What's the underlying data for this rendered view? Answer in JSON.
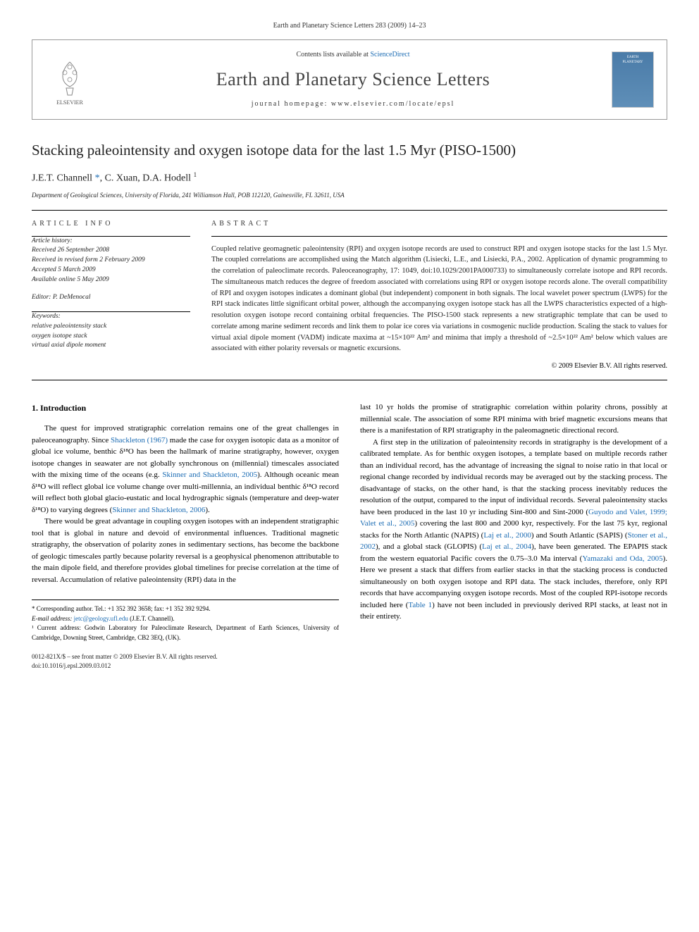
{
  "citation_top": "Earth and Planetary Science Letters 283 (2009) 14–23",
  "header": {
    "publisher_label": "ELSEVIER",
    "contents_prefix": "Contents lists available at ",
    "contents_link": "ScienceDirect",
    "journal_name": "Earth and Planetary Science Letters",
    "homepage_label": "journal homepage: www.elsevier.com/locate/epsl",
    "thumb_line1": "EARTH",
    "thumb_line2": "PLANETARY"
  },
  "article": {
    "title": "Stacking paleointensity and oxygen isotope data for the last 1.5 Myr (PISO-1500)",
    "authors_html": "J.E.T. Channell *, C. Xuan, D.A. Hodell ¹",
    "affiliation": "Department of Geological Sciences, University of Florida, 241 Williamson Hall, POB 112120, Gainesville, FL 32611, USA"
  },
  "info": {
    "label": "ARTICLE INFO",
    "history_label": "Article history:",
    "history": [
      "Received 26 September 2008",
      "Received in revised form 2 February 2009",
      "Accepted 5 March 2009",
      "Available online 5 May 2009"
    ],
    "editor": "Editor: P. DeMenocal",
    "keywords_label": "Keywords:",
    "keywords": [
      "relative paleointensity stack",
      "oxygen isotope stack",
      "virtual axial dipole moment"
    ]
  },
  "abstract": {
    "label": "ABSTRACT",
    "text": "Coupled relative geomagnetic paleointensity (RPI) and oxygen isotope records are used to construct RPI and oxygen isotope stacks for the last 1.5 Myr. The coupled correlations are accomplished using the Match algorithm (Lisiecki, L.E., and Lisiecki, P.A., 2002. Application of dynamic programming to the correlation of paleoclimate records. Paleoceanography, 17: 1049, doi:10.1029/2001PA000733) to simultaneously correlate isotope and RPI records. The simultaneous match reduces the degree of freedom associated with correlations using RPI or oxygen isotope records alone. The overall compatibility of RPI and oxygen isotopes indicates a dominant global (but independent) component in both signals. The local wavelet power spectrum (LWPS) for the RPI stack indicates little significant orbital power, although the accompanying oxygen isotope stack has all the LWPS characteristics expected of a high-resolution oxygen isotope record containing orbital frequencies. The PISO-1500 stack represents a new stratigraphic template that can be used to correlate among marine sediment records and link them to polar ice cores via variations in cosmogenic nuclide production. Scaling the stack to values for virtual axial dipole moment (VADM) indicate maxima at ~15×10²² Am² and minima that imply a threshold of ~2.5×10²² Am² below which values are associated with either polarity reversals or magnetic excursions.",
    "copyright": "© 2009 Elsevier B.V. All rights reserved."
  },
  "body": {
    "heading": "1. Introduction",
    "col1": {
      "p1": "The quest for improved stratigraphic correlation remains one of the great challenges in paleoceanography. Since <span class=\"ref\">Shackleton (1967)</span> made the case for oxygen isotopic data as a monitor of global ice volume, benthic δ¹⁸O has been the hallmark of marine stratigraphy, however, oxygen isotope changes in seawater are not globally synchronous on (millennial) timescales associated with the mixing time of the oceans (e.g. <span class=\"ref\">Skinner and Shackleton, 2005</span>). Although oceanic mean δ¹⁸O will reflect global ice volume change over multi-millennia, an individual benthic δ¹⁸O record will reflect both global glacio-eustatic and local hydrographic signals (temperature and deep-water δ¹⁸O) to varying degrees (<span class=\"ref\">Skinner and Shackleton, 2006</span>).",
      "p2": "There would be great advantage in coupling oxygen isotopes with an independent stratigraphic tool that is global in nature and devoid of environmental influences. Traditional magnetic stratigraphy, the observation of polarity zones in sedimentary sections, has become the backbone of geologic timescales partly because polarity reversal is a geophysical phenomenon attributable to the main dipole field, and therefore provides global timelines for precise correlation at the time of reversal. Accumulation of relative paleointensity (RPI) data in the"
    },
    "col2": {
      "p1": "last 10 yr holds the promise of stratigraphic correlation within polarity chrons, possibly at millennial scale. The association of some RPI minima with brief magnetic excursions means that there is a manifestation of RPI stratigraphy in the paleomagnetic directional record.",
      "p2": "A first step in the utilization of paleointensity records in stratigraphy is the development of a calibrated template. As for benthic oxygen isotopes, a template based on multiple records rather than an individual record, has the advantage of increasing the signal to noise ratio in that local or regional change recorded by individual records may be averaged out by the stacking process. The disadvantage of stacks, on the other hand, is that the stacking process inevitably reduces the resolution of the output, compared to the input of individual records. Several paleointensity stacks have been produced in the last 10 yr including Sint-800 and Sint-2000 (<span class=\"ref\">Guyodo and Valet, 1999; Valet et al., 2005</span>) covering the last 800 and 2000 kyr, respectively. For the last 75 kyr, regional stacks for the North Atlantic (NAPIS) (<span class=\"ref\">Laj et al., 2000</span>) and South Atlantic (SAPIS) (<span class=\"ref\">Stoner et al., 2002</span>), and a global stack (GLOPIS) (<span class=\"ref\">Laj et al., 2004</span>), have been generated. The EPAPIS stack from the western equatorial Pacific covers the 0.75–3.0 Ma interval (<span class=\"ref\">Yamazaki and Oda, 2005</span>). Here we present a stack that differs from earlier stacks in that the stacking process is conducted simultaneously on both oxygen isotope and RPI data. The stack includes, therefore, only RPI records that have accompanying oxygen isotope records. Most of the coupled RPI-isotope records included here (<span class=\"ref\">Table 1</span>) have not been included in previously derived RPI stacks, at least not in their entirety."
    }
  },
  "footnotes": {
    "corr": "* Corresponding author. Tel.: +1 352 392 3658; fax: +1 352 392 9294.",
    "email_label": "E-mail address:",
    "email": "jetc@geology.ufl.edu",
    "email_suffix": "(J.E.T. Channell).",
    "note1": "¹ Current address: Godwin Laboratory for Paleoclimate Research, Department of Earth Sciences, University of Cambridge, Downing Street, Cambridge, CB2 3EQ, (UK)."
  },
  "bottom": {
    "issn_line": "0012-821X/$ – see front matter © 2009 Elsevier B.V. All rights reserved.",
    "doi_line": "doi:10.1016/j.epsl.2009.03.012"
  },
  "colors": {
    "link": "#1a6bb3",
    "text": "#000000",
    "gray": "#333333",
    "border": "#999999"
  }
}
